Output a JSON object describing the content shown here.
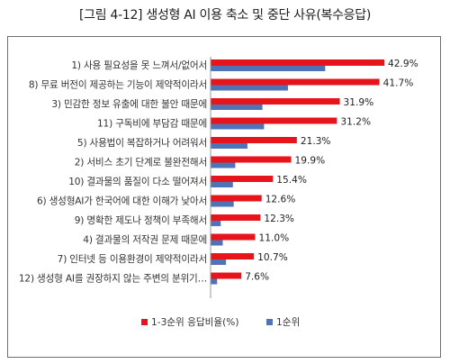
{
  "chart_data": {
    "type": "bar",
    "orientation": "horizontal",
    "title": "[그림 4-12]   생성형 AI 이용 축소 및 중단 사유(복수응답)",
    "categories": [
      "1) 사용 필요성을 못 느껴서/없어서",
      "8) 무료 버전이 제공하는 기능이 제약적이라서",
      "3) 민감한 정보 유출에 대한 불안 때문에",
      "11) 구독비에 부담감 때문에",
      "5) 사용법이 복잡하거나 어려워서",
      "2) 서비스 초기 단계로 불완전해서",
      "10) 결과물의 품질이 다소 떨어져서",
      "6) 생성형AI가 한국어에 대한 이해가 낮아서",
      "9) 명확한 제도나 정책이 부족해서",
      "4) 결과물의 저작권 문제 때문에",
      "7) 인터넷 등 이용환경이 제약적이라서",
      "12) 생성형 AI를 권장하지 않는 주변의 분위기…"
    ],
    "series": [
      {
        "name": "1-3순위 응답비율(%)",
        "color": "#e8141b",
        "values": [
          42.9,
          41.7,
          31.9,
          31.2,
          21.3,
          19.9,
          15.4,
          12.6,
          12.3,
          11.0,
          10.7,
          7.6
        ],
        "labels": [
          "42.9%",
          "41.7%",
          "31.9%",
          "31.2%",
          "21.3%",
          "19.9%",
          "15.4%",
          "12.6%",
          "12.3%",
          "11.0%",
          "10.7%",
          "7.6%"
        ]
      },
      {
        "name": "1순위",
        "color": "#4f73b5",
        "values": [
          28.3,
          19.1,
          12.8,
          13.2,
          9.1,
          6.1,
          5.5,
          5.7,
          2.5,
          3.0,
          3.8,
          1.6
        ]
      }
    ],
    "xlim": [
      0,
      45
    ],
    "grid": false,
    "legend": "bottom"
  }
}
